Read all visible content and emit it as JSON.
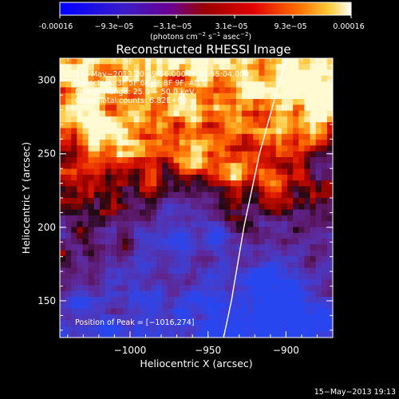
{
  "colorbar": {
    "ticks": [
      "-0.00016",
      "−9.3e−05",
      "−3.1e−05",
      "3.1e−05",
      "9.3e−05",
      "0.00016"
    ],
    "unit_main": "(photons cm",
    "unit_s": "s",
    "unit_asec": "asec",
    "unit_close": ")",
    "sup_neg2": "−2",
    "sup_neg1": "−1"
  },
  "chart_data": {
    "type": "heatmap",
    "title": "Reconstructed RHESSI Image",
    "xlabel": "Heliocentric X (arcsec)",
    "ylabel": "Heliocentric Y (arcsec)",
    "xlim": [
      -1045,
      -870
    ],
    "ylim": [
      125,
      315
    ],
    "x_ticks": [
      -1000,
      -950,
      -900
    ],
    "x_tick_labels": [
      "−1000",
      "−950",
      "−900"
    ],
    "y_ticks": [
      150,
      200,
      250,
      300
    ],
    "y_tick_labels": [
      "150",
      "200",
      "250",
      "300"
    ],
    "colorscale_range": [
      -0.00016,
      0.00016
    ],
    "annotations": [
      "14−May−2013 20:49:56.000 to 20:55:04.000",
      "Detectors: 3F 5F 6F 7F 8F 9F, Att 0",
      "Energy Range: 25.0 − 50.0 keV",
      "Clean     Total counts: 6.82E+03"
    ],
    "peak_label": "Position of Peak = [−1016,274]",
    "peak_position": [
      -1016,
      274
    ],
    "limb_curve": [
      [
        -940,
        125
      ],
      [
        -935,
        150
      ],
      [
        -927,
        200
      ],
      [
        -917,
        250
      ],
      [
        -904,
        300
      ],
      [
        -900,
        315
      ]
    ]
  },
  "footer": {
    "timestamp": "15−May−2013 19:13"
  }
}
